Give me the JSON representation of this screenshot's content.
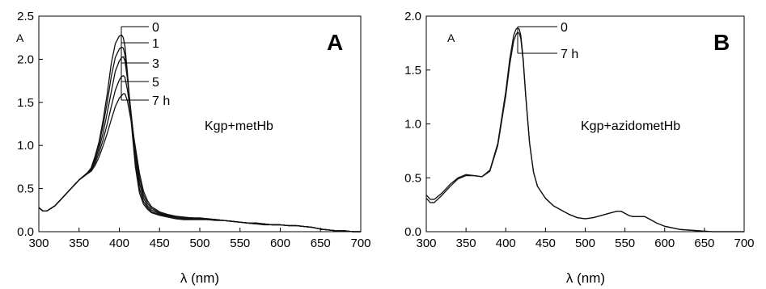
{
  "chart_data": [
    {
      "type": "line",
      "panel_letter": "A",
      "annotation": "Kgp+metHb",
      "xlabel": "λ (nm)",
      "ylabel": "A",
      "xlim": [
        300,
        700
      ],
      "ylim": [
        0,
        2.5
      ],
      "x_ticks": [
        "300",
        "350",
        "400",
        "450",
        "500",
        "550",
        "600",
        "650",
        "700"
      ],
      "y_ticks": [
        "0.0",
        "0.5",
        "1.0",
        "1.5",
        "2.0",
        "2.5"
      ],
      "grid": false,
      "trace_labels": [
        "0",
        "1",
        "3",
        "5",
        "7 h"
      ],
      "x": [
        300,
        305,
        310,
        320,
        330,
        340,
        350,
        360,
        365,
        370,
        375,
        380,
        385,
        390,
        395,
        400,
        403,
        405,
        407,
        410,
        415,
        420,
        425,
        430,
        435,
        440,
        450,
        460,
        470,
        480,
        490,
        500,
        510,
        520,
        530,
        540,
        550,
        560,
        570,
        580,
        590,
        600,
        610,
        620,
        630,
        640,
        650,
        660,
        670,
        680,
        690,
        700
      ],
      "series": [
        {
          "values": [
            0.28,
            0.24,
            0.24,
            0.3,
            0.4,
            0.5,
            0.6,
            0.68,
            0.74,
            0.88,
            1.05,
            1.3,
            1.6,
            1.95,
            2.18,
            2.27,
            2.28,
            2.25,
            2.15,
            1.85,
            1.25,
            0.75,
            0.45,
            0.32,
            0.26,
            0.22,
            0.19,
            0.17,
            0.15,
            0.14,
            0.14,
            0.14,
            0.14,
            0.13,
            0.13,
            0.12,
            0.11,
            0.1,
            0.09,
            0.08,
            0.08,
            0.08,
            0.07,
            0.07,
            0.06,
            0.05,
            0.03,
            0.02,
            0.01,
            0.01,
            0.0,
            0.0
          ]
        },
        {
          "values": [
            0.28,
            0.24,
            0.24,
            0.3,
            0.4,
            0.5,
            0.6,
            0.68,
            0.73,
            0.86,
            1.02,
            1.24,
            1.5,
            1.8,
            2.02,
            2.12,
            2.14,
            2.13,
            2.05,
            1.82,
            1.3,
            0.82,
            0.5,
            0.35,
            0.28,
            0.23,
            0.2,
            0.18,
            0.16,
            0.15,
            0.15,
            0.15,
            0.14,
            0.14,
            0.13,
            0.12,
            0.11,
            0.1,
            0.09,
            0.09,
            0.08,
            0.08,
            0.07,
            0.07,
            0.06,
            0.05,
            0.03,
            0.02,
            0.01,
            0.01,
            0.0,
            0.0
          ]
        },
        {
          "values": [
            0.28,
            0.24,
            0.24,
            0.3,
            0.4,
            0.5,
            0.6,
            0.68,
            0.72,
            0.83,
            0.97,
            1.15,
            1.38,
            1.62,
            1.86,
            1.98,
            2.02,
            2.03,
            1.98,
            1.78,
            1.35,
            0.9,
            0.56,
            0.39,
            0.3,
            0.25,
            0.21,
            0.19,
            0.17,
            0.16,
            0.16,
            0.15,
            0.15,
            0.14,
            0.13,
            0.12,
            0.11,
            0.1,
            0.09,
            0.09,
            0.08,
            0.08,
            0.07,
            0.07,
            0.06,
            0.05,
            0.03,
            0.02,
            0.01,
            0.01,
            0.0,
            0.0
          ]
        },
        {
          "values": [
            0.28,
            0.24,
            0.24,
            0.3,
            0.4,
            0.5,
            0.6,
            0.67,
            0.71,
            0.8,
            0.92,
            1.07,
            1.25,
            1.45,
            1.64,
            1.76,
            1.8,
            1.81,
            1.79,
            1.65,
            1.32,
            0.95,
            0.62,
            0.43,
            0.33,
            0.27,
            0.22,
            0.19,
            0.17,
            0.16,
            0.16,
            0.15,
            0.15,
            0.14,
            0.13,
            0.12,
            0.11,
            0.1,
            0.1,
            0.09,
            0.08,
            0.08,
            0.07,
            0.07,
            0.06,
            0.05,
            0.03,
            0.02,
            0.01,
            0.01,
            0.0,
            0.0
          ]
        },
        {
          "values": [
            0.28,
            0.24,
            0.24,
            0.3,
            0.4,
            0.5,
            0.6,
            0.67,
            0.7,
            0.77,
            0.87,
            1.0,
            1.14,
            1.3,
            1.45,
            1.55,
            1.58,
            1.6,
            1.6,
            1.52,
            1.27,
            0.98,
            0.68,
            0.47,
            0.36,
            0.29,
            0.23,
            0.2,
            0.18,
            0.17,
            0.16,
            0.16,
            0.15,
            0.14,
            0.13,
            0.12,
            0.11,
            0.1,
            0.1,
            0.09,
            0.08,
            0.08,
            0.07,
            0.07,
            0.06,
            0.05,
            0.03,
            0.02,
            0.01,
            0.01,
            0.0,
            0.0
          ]
        }
      ]
    },
    {
      "type": "line",
      "panel_letter": "B",
      "annotation": "Kgp+azidometHb",
      "xlabel": "λ (nm)",
      "ylabel": "A",
      "xlim": [
        300,
        700
      ],
      "ylim": [
        0,
        2.0
      ],
      "x_ticks": [
        "300",
        "350",
        "400",
        "450",
        "500",
        "550",
        "600",
        "650",
        "700"
      ],
      "y_ticks": [
        "0.0",
        "0.5",
        "1.0",
        "1.5",
        "2.0"
      ],
      "grid": false,
      "trace_labels": [
        "0",
        "7 h"
      ],
      "x": [
        300,
        305,
        310,
        320,
        330,
        340,
        350,
        360,
        370,
        380,
        390,
        400,
        405,
        410,
        413,
        415,
        417,
        419,
        422,
        425,
        430,
        435,
        440,
        450,
        460,
        470,
        480,
        490,
        500,
        510,
        520,
        530,
        540,
        545,
        550,
        555,
        560,
        570,
        575,
        580,
        590,
        600,
        620,
        640,
        660,
        680,
        700
      ],
      "series": [
        {
          "values": [
            0.34,
            0.3,
            0.3,
            0.36,
            0.44,
            0.5,
            0.53,
            0.52,
            0.51,
            0.57,
            0.82,
            1.3,
            1.6,
            1.82,
            1.88,
            1.89,
            1.88,
            1.82,
            1.6,
            1.28,
            0.82,
            0.55,
            0.42,
            0.31,
            0.24,
            0.2,
            0.16,
            0.13,
            0.12,
            0.13,
            0.15,
            0.17,
            0.19,
            0.19,
            0.17,
            0.15,
            0.14,
            0.14,
            0.14,
            0.12,
            0.08,
            0.05,
            0.02,
            0.01,
            0.0,
            0.0,
            0.0
          ]
        },
        {
          "values": [
            0.31,
            0.27,
            0.27,
            0.34,
            0.42,
            0.49,
            0.52,
            0.52,
            0.51,
            0.56,
            0.8,
            1.26,
            1.55,
            1.77,
            1.83,
            1.85,
            1.84,
            1.79,
            1.58,
            1.27,
            0.82,
            0.55,
            0.42,
            0.31,
            0.24,
            0.2,
            0.16,
            0.13,
            0.12,
            0.13,
            0.15,
            0.17,
            0.19,
            0.19,
            0.17,
            0.15,
            0.14,
            0.14,
            0.14,
            0.12,
            0.08,
            0.05,
            0.02,
            0.01,
            0.0,
            0.0,
            0.0
          ]
        }
      ]
    }
  ]
}
